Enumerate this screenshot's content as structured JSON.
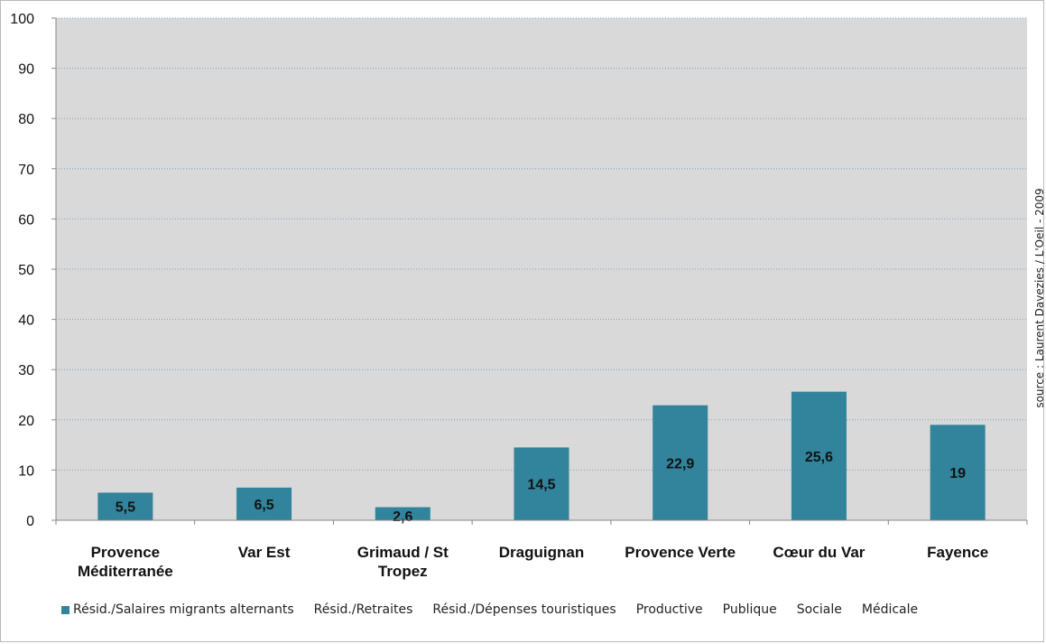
{
  "chart_data": {
    "type": "bar",
    "categories": [
      "Provence Méditerranée",
      "Var Est",
      "Grimaud / St Tropez",
      "Draguignan",
      "Provence Verte",
      "Cœur du Var",
      "Fayence"
    ],
    "category_lines": [
      [
        "Provence",
        "Méditerranée"
      ],
      [
        "Var Est"
      ],
      [
        "Grimaud / St",
        "Tropez"
      ],
      [
        "Draguignan"
      ],
      [
        "Provence Verte"
      ],
      [
        "Cœur du Var"
      ],
      [
        "Fayence"
      ]
    ],
    "series": [
      {
        "name": "Résid./Salaires migrants alternants",
        "values": [
          5.5,
          6.5,
          2.6,
          14.5,
          22.9,
          25.6,
          19
        ],
        "labels": [
          "5,5",
          "6,5",
          "2,6",
          "14,5",
          "22,9",
          "25,6",
          "19"
        ],
        "color": "#31849b"
      }
    ],
    "y_ticks": [
      "0",
      "10",
      "20",
      "30",
      "40",
      "50",
      "60",
      "70",
      "80",
      "90",
      "100"
    ],
    "ylim": [
      0,
      100
    ],
    "grid": true,
    "legend_position": "bottom",
    "legend_entries": [
      {
        "label": "Résid./Salaires migrants alternants",
        "color": "#31849b",
        "swatch": true
      },
      {
        "label": "Résid./Retraites",
        "swatch": false
      },
      {
        "label": "Résid./Dépenses touristiques",
        "swatch": false
      },
      {
        "label": "Productive",
        "swatch": false
      },
      {
        "label": "Publique",
        "swatch": false
      },
      {
        "label": "Sociale",
        "swatch": false
      },
      {
        "label": "Médicale",
        "swatch": false
      }
    ],
    "plot_background": "#d9d9d9",
    "gridline_color": "#7f9fbf"
  },
  "source_note": "source : Laurent Davezies / L'Oeil - 2009"
}
